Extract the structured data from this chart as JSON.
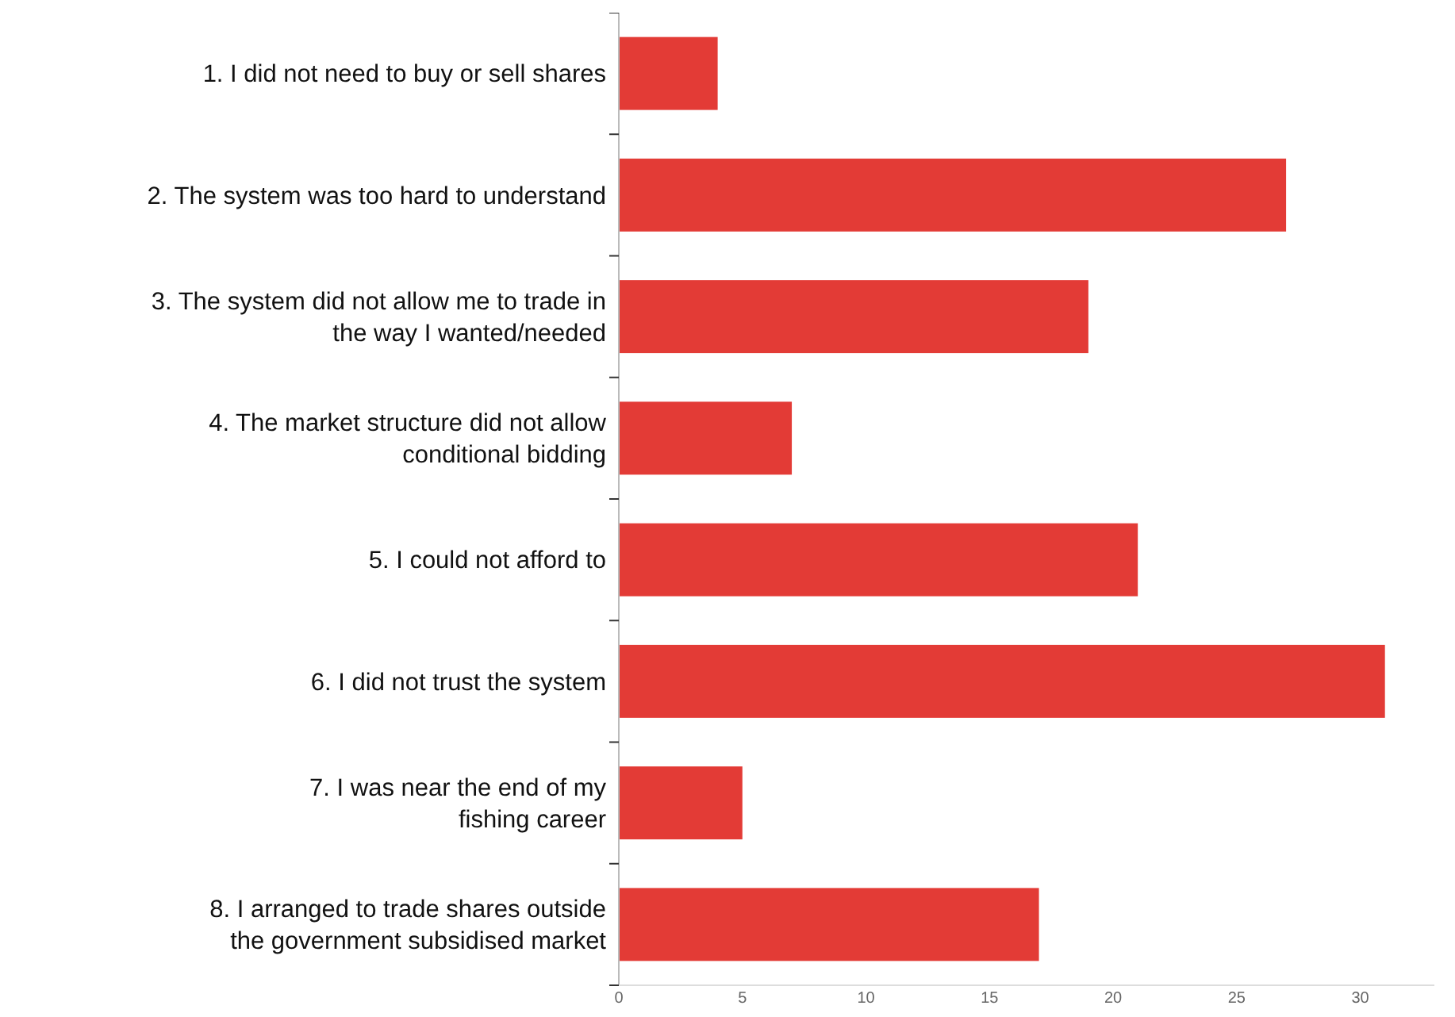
{
  "chart_data": {
    "type": "bar",
    "orientation": "horizontal",
    "categories": [
      "1. I did not need to buy or sell shares",
      "2. The system was too hard to understand",
      "3. The system did not allow me to trade in\nthe way I wanted/needed",
      "4. The market structure did not allow\nconditional bidding",
      "5. I could not afford to",
      "6. I did not trust the system",
      "7. I was near the end of my\nfishing career",
      "8. I arranged to trade shares outside\nthe government subsidised market"
    ],
    "values": [
      4,
      27,
      19,
      7,
      21,
      31,
      5,
      17
    ],
    "color": "#e33b36",
    "xlim": [
      0,
      33
    ],
    "xticks": [
      0,
      5,
      10,
      15,
      20,
      25,
      30
    ]
  }
}
